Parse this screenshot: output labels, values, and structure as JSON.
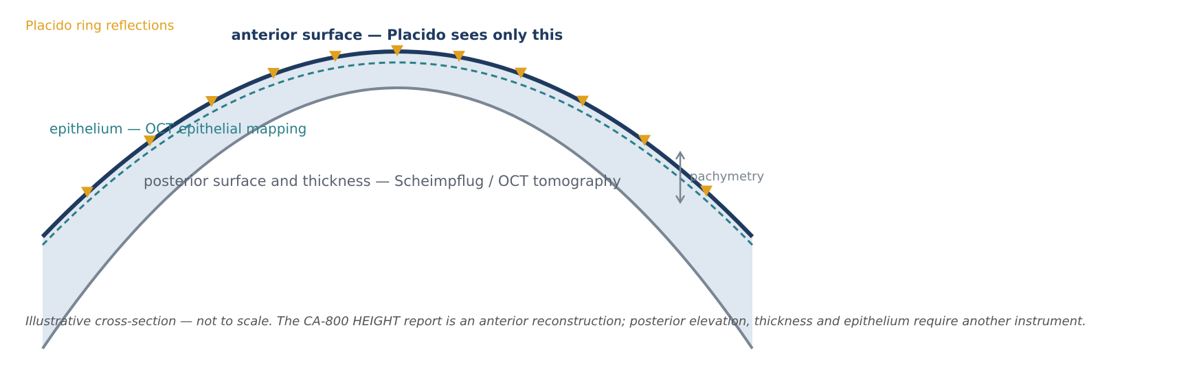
{
  "labels": {
    "placido": "Placido ring reflections",
    "anterior": "anterior surface — Placido sees only this",
    "epithelium": "epithelium — OCT epithelial mapping",
    "posterior": "posterior surface and thickness — Scheimpflug / OCT tomography",
    "pachymetry": "pachymetry",
    "caption": "Illustrative cross-section — not to scale. The CA-800 HEIGHT report is an anterior reconstruction; posterior elevation, thickness and epithelium require another instrument."
  }
}
